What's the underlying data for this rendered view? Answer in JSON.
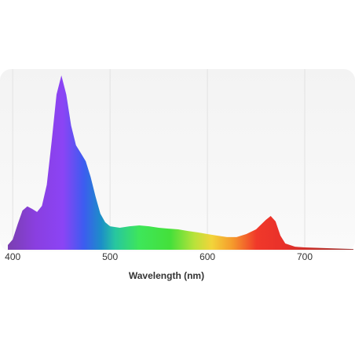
{
  "chart_data": {
    "type": "area",
    "x_label": "Wavelength (nm)",
    "x": [
      395,
      400,
      405,
      410,
      415,
      420,
      425,
      430,
      435,
      440,
      445,
      450,
      455,
      460,
      465,
      470,
      475,
      480,
      485,
      490,
      495,
      500,
      510,
      520,
      530,
      540,
      550,
      560,
      570,
      580,
      590,
      600,
      610,
      620,
      630,
      640,
      650,
      660,
      665,
      670,
      675,
      680,
      690,
      700,
      720,
      750
    ],
    "values": [
      0.026,
      0.057,
      0.14,
      0.217,
      0.24,
      0.226,
      0.209,
      0.243,
      0.36,
      0.6,
      0.86,
      0.965,
      0.86,
      0.687,
      0.578,
      0.535,
      0.49,
      0.404,
      0.296,
      0.2,
      0.152,
      0.13,
      0.122,
      0.13,
      0.135,
      0.13,
      0.122,
      0.117,
      0.113,
      0.104,
      0.096,
      0.087,
      0.078,
      0.07,
      0.07,
      0.087,
      0.113,
      0.165,
      0.187,
      0.157,
      0.078,
      0.035,
      0.017,
      0.013,
      0.009,
      0.004
    ],
    "xlim": [
      395,
      750
    ],
    "ylim": [
      0,
      1
    ],
    "xticks": [
      400,
      500,
      600,
      700
    ],
    "grid": true
  }
}
